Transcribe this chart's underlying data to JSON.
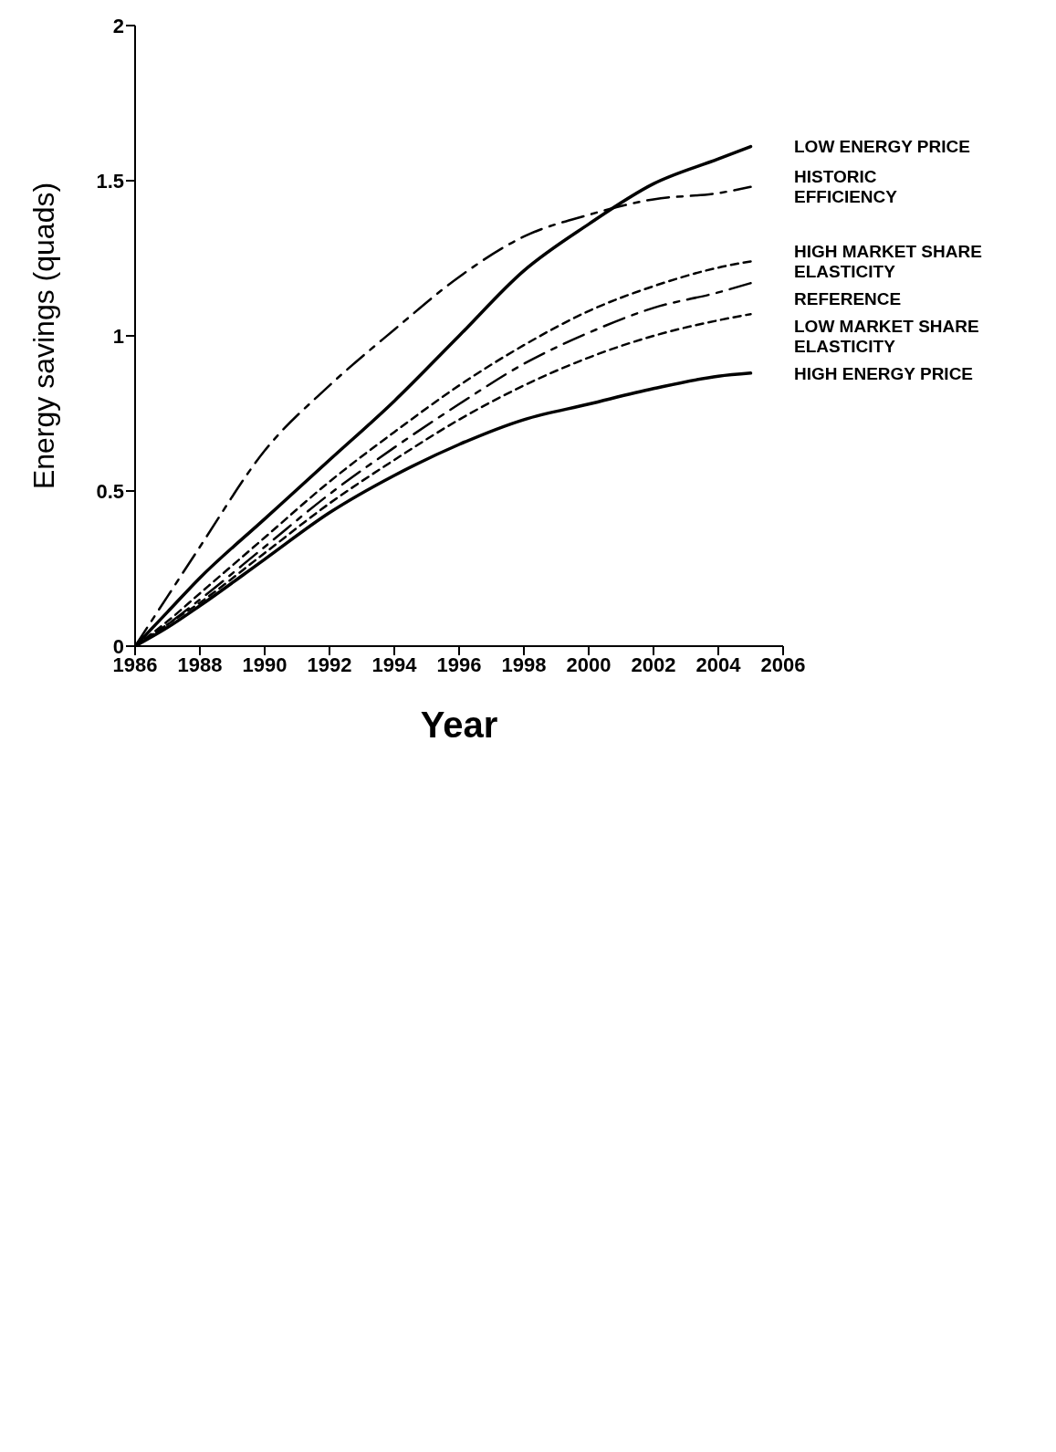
{
  "chart_data": {
    "type": "line",
    "xlabel": "Year",
    "ylabel": "Energy savings (quads)",
    "x": [
      1986,
      1987,
      1988,
      1990,
      1992,
      1994,
      1996,
      1998,
      2000,
      2002,
      2004,
      2005
    ],
    "series": [
      {
        "name": "LOW ENERGY PRICE",
        "color": "#000000",
        "line_style": "solid",
        "values": [
          0,
          0.11,
          0.22,
          0.41,
          0.6,
          0.79,
          1.0,
          1.21,
          1.36,
          1.49,
          1.57,
          1.61
        ]
      },
      {
        "name": "HISTORIC EFFICIENCY",
        "color": "#000000",
        "line_style": "dashed",
        "values": [
          0,
          0.16,
          0.32,
          0.63,
          0.84,
          1.02,
          1.19,
          1.32,
          1.39,
          1.44,
          1.46,
          1.48
        ]
      },
      {
        "name": "HIGH MARKET SHARE ELASTICITY",
        "color": "#000000",
        "line_style": "dotted",
        "values": [
          0,
          0.08,
          0.17,
          0.35,
          0.53,
          0.69,
          0.84,
          0.97,
          1.08,
          1.16,
          1.22,
          1.24
        ]
      },
      {
        "name": "REFERENCE",
        "color": "#000000",
        "line_style": "dashed",
        "values": [
          0,
          0.07,
          0.15,
          0.32,
          0.49,
          0.64,
          0.78,
          0.91,
          1.01,
          1.09,
          1.14,
          1.17
        ]
      },
      {
        "name": "LOW MARKET SHARE ELASTICITY",
        "color": "#000000",
        "line_style": "dotted",
        "values": [
          0,
          0.07,
          0.14,
          0.3,
          0.46,
          0.6,
          0.73,
          0.84,
          0.93,
          1.0,
          1.05,
          1.07
        ]
      },
      {
        "name": "HIGH ENERGY PRICE",
        "color": "#000000",
        "line_style": "solid",
        "values": [
          0,
          0.06,
          0.13,
          0.28,
          0.43,
          0.55,
          0.65,
          0.73,
          0.78,
          0.83,
          0.87,
          0.88
        ]
      }
    ],
    "xlim": [
      1986,
      2006
    ],
    "xticks": [
      1986,
      1988,
      1990,
      1992,
      1994,
      1996,
      1998,
      2000,
      2002,
      2004,
      2006
    ],
    "ylim": [
      0,
      2
    ],
    "yticks": [
      0,
      0.5,
      1,
      1.5,
      2
    ],
    "marker": "none",
    "legend": "right"
  }
}
